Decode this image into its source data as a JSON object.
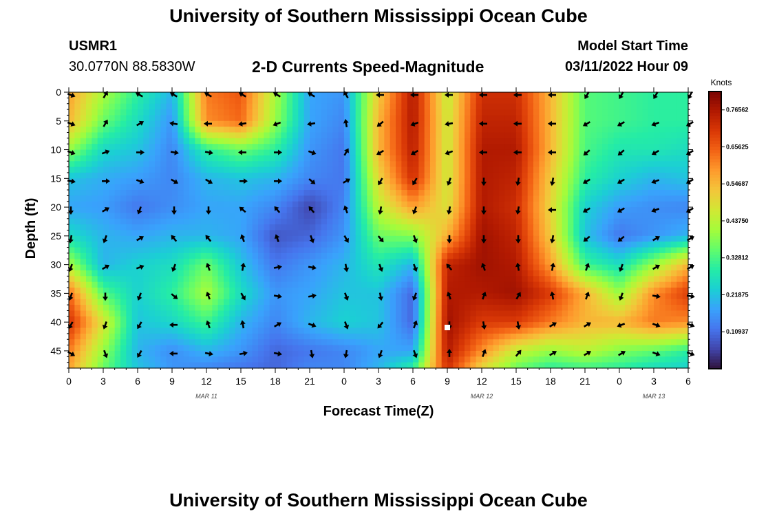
{
  "header": {
    "title": "University of Southern Mississippi Ocean Cube",
    "station_id": "USMR1",
    "location": "30.0770N  88.5830W",
    "plot_title": "2-D Currents Speed-Magnitude",
    "model_start_label": "Model Start Time",
    "model_start_value": "03/11/2022 Hour 09"
  },
  "footer": {
    "title": "University of Southern Mississippi Ocean Cube"
  },
  "chart_data": {
    "type": "heatmap",
    "title": "2-D Currents Speed-Magnitude",
    "xlabel": "Forecast Time(Z)",
    "ylabel": "Depth (ft)",
    "x_tick_labels": [
      "0",
      "3",
      "6",
      "9",
      "12",
      "15",
      "18",
      "21",
      "0",
      "3",
      "6",
      "9",
      "12",
      "15",
      "18",
      "21",
      "0",
      "3",
      "6"
    ],
    "x_hours": [
      0,
      3,
      6,
      9,
      12,
      15,
      18,
      21,
      24,
      27,
      30,
      33,
      36,
      39,
      42,
      45,
      48,
      51,
      54
    ],
    "date_labels": [
      {
        "label": "MAR 11",
        "hour": 12
      },
      {
        "label": "MAR 12",
        "hour": 36
      },
      {
        "label": "MAR 13",
        "hour": 51
      }
    ],
    "y_ticks": [
      0,
      5,
      10,
      15,
      20,
      25,
      30,
      35,
      40,
      45
    ],
    "ylim": [
      48,
      0
    ],
    "xlim": [
      0,
      54
    ],
    "colorbar": {
      "unit": "Knots",
      "min": 0,
      "max": 0.82,
      "tick_labels": [
        "0.76562",
        "0.65625",
        "0.54687",
        "0.43750",
        "0.32812",
        "0.21875",
        "0.10937"
      ],
      "tick_values": [
        0.76562,
        0.65625,
        0.54687,
        0.4375,
        0.32812,
        0.21875,
        0.10937
      ],
      "colors": [
        "#30123b",
        "#4145ab",
        "#4675ed",
        "#39a2fc",
        "#1bcfd4",
        "#24eca6",
        "#61fc6c",
        "#a4fc3b",
        "#d1e834",
        "#f3c63a",
        "#fe9b2d",
        "#f36315",
        "#d93806",
        "#b11901",
        "#7a0403"
      ]
    },
    "speed_grid_hours": [
      0,
      3,
      6,
      9,
      12,
      15,
      18,
      21,
      24,
      27,
      30,
      33,
      36,
      39,
      42,
      45,
      48,
      51,
      54
    ],
    "speed_grid_depths": [
      0,
      5,
      10,
      15,
      20,
      25,
      30,
      35,
      40,
      45,
      48
    ],
    "speed_knots": [
      [
        0.58,
        0.42,
        0.3,
        0.2,
        0.62,
        0.66,
        0.42,
        0.18,
        0.16,
        0.52,
        0.76,
        0.45,
        0.72,
        0.72,
        0.55,
        0.34,
        0.32,
        0.3,
        0.3
      ],
      [
        0.55,
        0.36,
        0.26,
        0.16,
        0.6,
        0.64,
        0.4,
        0.18,
        0.14,
        0.55,
        0.76,
        0.46,
        0.74,
        0.74,
        0.55,
        0.34,
        0.32,
        0.3,
        0.3
      ],
      [
        0.4,
        0.25,
        0.22,
        0.14,
        0.3,
        0.36,
        0.3,
        0.16,
        0.12,
        0.55,
        0.75,
        0.46,
        0.76,
        0.76,
        0.55,
        0.33,
        0.28,
        0.28,
        0.26
      ],
      [
        0.22,
        0.19,
        0.17,
        0.14,
        0.2,
        0.22,
        0.2,
        0.14,
        0.12,
        0.5,
        0.72,
        0.46,
        0.76,
        0.74,
        0.52,
        0.3,
        0.24,
        0.2,
        0.22
      ],
      [
        0.18,
        0.17,
        0.12,
        0.15,
        0.18,
        0.18,
        0.14,
        0.06,
        0.14,
        0.44,
        0.58,
        0.48,
        0.76,
        0.72,
        0.5,
        0.24,
        0.17,
        0.15,
        0.14
      ],
      [
        0.26,
        0.2,
        0.18,
        0.2,
        0.2,
        0.18,
        0.08,
        0.1,
        0.16,
        0.36,
        0.38,
        0.56,
        0.78,
        0.74,
        0.52,
        0.22,
        0.12,
        0.16,
        0.2
      ],
      [
        0.42,
        0.2,
        0.24,
        0.26,
        0.36,
        0.22,
        0.12,
        0.16,
        0.2,
        0.28,
        0.2,
        0.74,
        0.78,
        0.76,
        0.58,
        0.32,
        0.26,
        0.4,
        0.55
      ],
      [
        0.64,
        0.34,
        0.24,
        0.3,
        0.42,
        0.26,
        0.16,
        0.18,
        0.22,
        0.22,
        0.1,
        0.76,
        0.76,
        0.78,
        0.7,
        0.56,
        0.4,
        0.6,
        0.7
      ],
      [
        0.72,
        0.48,
        0.22,
        0.25,
        0.32,
        0.2,
        0.14,
        0.2,
        0.24,
        0.22,
        0.1,
        0.78,
        0.7,
        0.7,
        0.62,
        0.55,
        0.55,
        0.62,
        0.6
      ],
      [
        0.62,
        0.4,
        0.2,
        0.15,
        0.2,
        0.16,
        0.1,
        0.12,
        0.14,
        0.18,
        0.18,
        0.76,
        0.6,
        0.45,
        0.4,
        0.44,
        0.38,
        0.35,
        0.3
      ],
      [
        0.58,
        0.36,
        0.22,
        0.16,
        0.14,
        0.12,
        0.1,
        0.14,
        0.14,
        0.2,
        0.3,
        0.72,
        0.5,
        0.36,
        0.3,
        0.32,
        0.3,
        0.26,
        0.24
      ]
    ],
    "vector_hours": [
      0,
      3,
      6,
      9,
      12,
      15,
      18,
      21,
      24,
      27,
      30,
      33,
      36,
      39,
      42,
      45,
      48,
      51,
      54
    ],
    "vector_depths": [
      0,
      5,
      10,
      15,
      20,
      25,
      30,
      35,
      40,
      45
    ],
    "vector_direction_deg": [
      [
        110,
        30,
        300,
        300,
        300,
        300,
        300,
        300,
        330,
        270,
        270,
        270,
        270,
        270,
        270,
        210,
        210,
        210,
        210
      ],
      [
        110,
        30,
        60,
        280,
        270,
        260,
        250,
        260,
        350,
        230,
        250,
        260,
        270,
        270,
        270,
        240,
        240,
        250,
        240
      ],
      [
        110,
        70,
        90,
        100,
        100,
        270,
        90,
        110,
        30,
        240,
        240,
        250,
        270,
        270,
        270,
        230,
        230,
        240,
        240
      ],
      [
        100,
        90,
        110,
        120,
        120,
        90,
        90,
        130,
        60,
        210,
        210,
        200,
        180,
        190,
        190,
        240,
        240,
        250,
        240
      ],
      [
        180,
        60,
        200,
        180,
        180,
        310,
        320,
        320,
        340,
        190,
        200,
        190,
        180,
        190,
        270,
        240,
        240,
        250,
        240
      ],
      [
        190,
        200,
        60,
        320,
        320,
        340,
        340,
        160,
        150,
        140,
        160,
        180,
        180,
        180,
        190,
        230,
        230,
        60,
        60
      ],
      [
        200,
        60,
        70,
        200,
        340,
        10,
        80,
        100,
        170,
        160,
        160,
        320,
        340,
        350,
        10,
        20,
        200,
        60,
        60
      ],
      [
        200,
        180,
        200,
        130,
        340,
        150,
        100,
        80,
        160,
        170,
        200,
        340,
        20,
        30,
        350,
        20,
        200,
        100,
        100
      ],
      [
        210,
        200,
        210,
        270,
        340,
        350,
        60,
        110,
        160,
        220,
        20,
        180,
        170,
        170,
        60,
        60,
        250,
        110,
        110
      ],
      [
        120,
        160,
        210,
        270,
        100,
        80,
        100,
        170,
        190,
        200,
        160,
        0,
        20,
        40,
        60,
        60,
        60,
        110,
        110
      ]
    ]
  }
}
